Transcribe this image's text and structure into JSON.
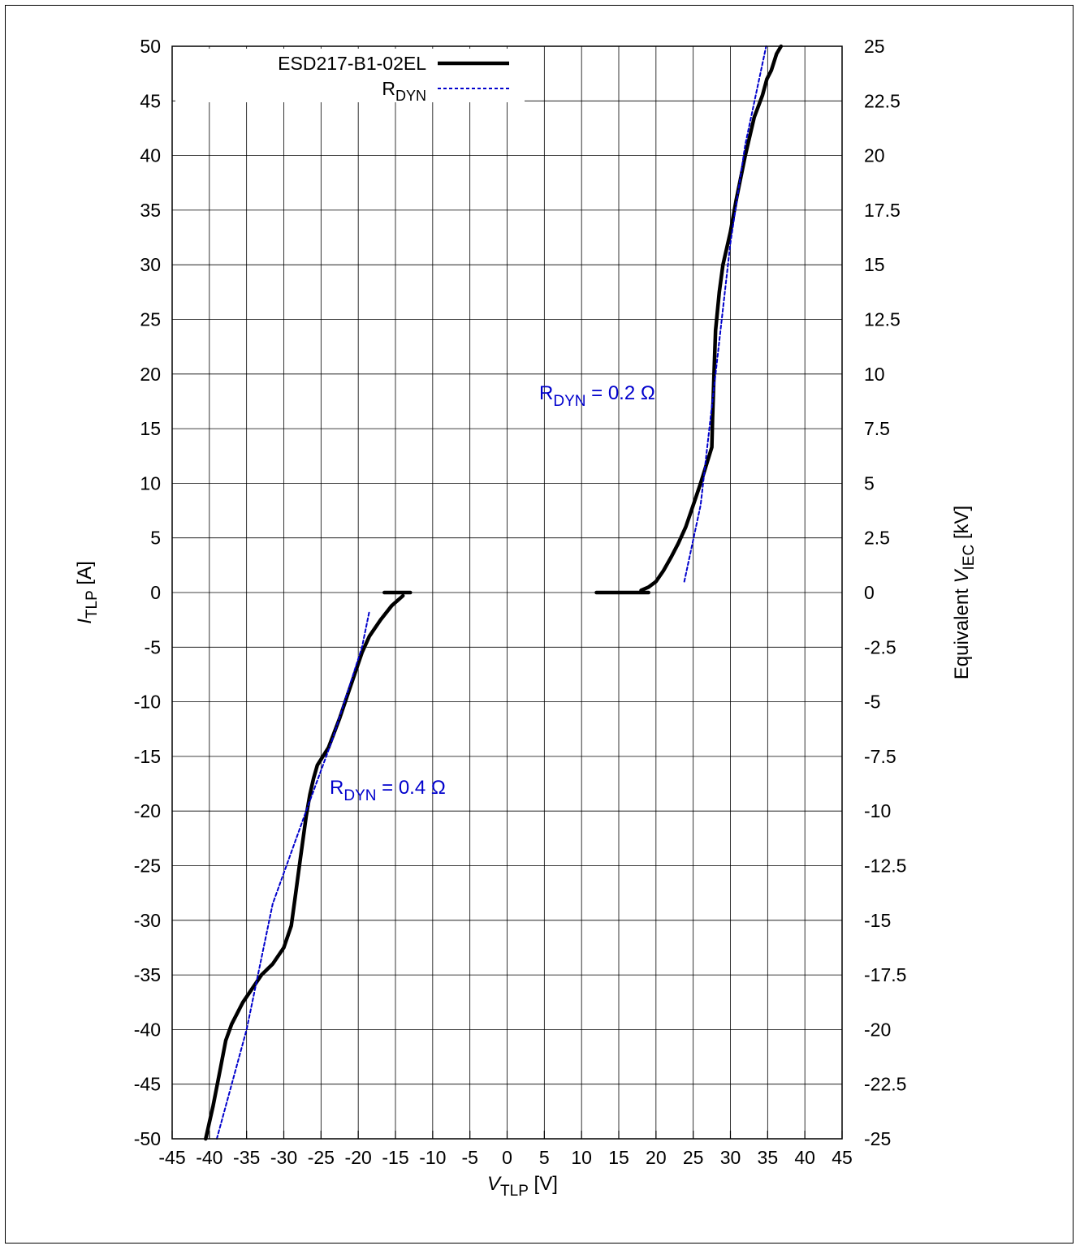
{
  "chart_data": {
    "type": "line",
    "x_axis": {
      "label_main": "V",
      "label_sub": "TLP",
      "label_unit": " [V]",
      "range": [
        -45,
        45
      ],
      "ticks": [
        -45,
        -40,
        -35,
        -30,
        -25,
        -20,
        -15,
        -10,
        -5,
        0,
        5,
        10,
        15,
        20,
        25,
        30,
        35,
        40,
        45
      ]
    },
    "y_axis": {
      "label_main": "I",
      "label_sub": "TLP",
      "label_unit": " [A]",
      "range": [
        -50,
        50
      ],
      "ticks": [
        -50,
        -45,
        -40,
        -35,
        -30,
        -25,
        -20,
        -15,
        -10,
        -5,
        0,
        5,
        10,
        15,
        20,
        25,
        30,
        35,
        40,
        45,
        50
      ]
    },
    "y2_axis": {
      "label_main": "Equivalent ",
      "label_italic": "V",
      "label_sub": "IEC",
      "label_unit": "  [kV]",
      "range": [
        -25,
        25
      ],
      "tick_labels": [
        "-25",
        "-22.5",
        "-20",
        "-17.5",
        "-15",
        "-12.5",
        "-10",
        "-7.5",
        "-5",
        "-2.5",
        "0",
        "2.5",
        "5",
        "7.5",
        "10",
        "12.5",
        "15",
        "17.5",
        "20",
        "22.5",
        "25"
      ]
    },
    "grid": true,
    "legend_position": "top-left",
    "series": [
      {
        "name": "ESD217-B1-02EL",
        "color": "#000000",
        "style": "solid",
        "segments": [
          [
            [
              12,
              0
            ],
            [
              16,
              0
            ],
            [
              19,
              0
            ]
          ],
          [
            [
              18,
              0.2
            ],
            [
              19,
              0.5
            ],
            [
              20,
              1
            ],
            [
              21,
              2
            ],
            [
              22,
              3.2
            ],
            [
              23,
              4.5
            ],
            [
              24,
              6
            ],
            [
              25,
              8
            ],
            [
              26,
              10
            ],
            [
              27,
              12.2
            ],
            [
              27.5,
              13.3
            ],
            [
              27.6,
              16
            ],
            [
              27.8,
              20
            ],
            [
              28,
              24
            ],
            [
              28.5,
              27.5
            ],
            [
              29,
              30
            ],
            [
              30,
              33
            ],
            [
              30.8,
              36
            ],
            [
              32,
              40
            ],
            [
              33.2,
              43.5
            ],
            [
              34.3,
              45.5
            ],
            [
              34.9,
              47
            ],
            [
              35.5,
              47.8
            ],
            [
              36.2,
              49.3
            ],
            [
              36.8,
              50
            ]
          ],
          [
            [
              -16.5,
              0
            ],
            [
              -15,
              0
            ],
            [
              -13,
              0
            ]
          ],
          [
            [
              -14,
              -0.3
            ],
            [
              -15.5,
              -1.2
            ],
            [
              -17,
              -2.5
            ],
            [
              -18.5,
              -4
            ],
            [
              -19.5,
              -5.5
            ],
            [
              -20.5,
              -7.5
            ],
            [
              -21.5,
              -9.5
            ],
            [
              -22.5,
              -11.5
            ],
            [
              -24,
              -14.2
            ],
            [
              -25.5,
              -15.8
            ],
            [
              -26,
              -17
            ],
            [
              -26.5,
              -18.5
            ],
            [
              -27,
              -20.5
            ],
            [
              -27.5,
              -23
            ],
            [
              -28,
              -25.5
            ],
            [
              -28.5,
              -28
            ],
            [
              -29,
              -30.5
            ],
            [
              -30,
              -32.5
            ],
            [
              -31.5,
              -34
            ],
            [
              -33,
              -35
            ],
            [
              -35.5,
              -37.5
            ],
            [
              -37,
              -39.5
            ],
            [
              -37.8,
              -41
            ],
            [
              -38.5,
              -43.5
            ],
            [
              -39.5,
              -47
            ],
            [
              -40.5,
              -50
            ]
          ]
        ]
      },
      {
        "name": "R",
        "name_sub": "DYN",
        "color": "#0000cc",
        "style": "dashed",
        "segments": [
          [
            [
              23.8,
              1
            ],
            [
              26,
              8
            ],
            [
              28,
              20
            ],
            [
              30,
              32
            ],
            [
              32,
              41
            ],
            [
              34.8,
              50
            ]
          ],
          [
            [
              -39,
              -50
            ],
            [
              -35,
              -40
            ],
            [
              -31.5,
              -28.5
            ],
            [
              -27,
              -20
            ],
            [
              -23.5,
              -13.5
            ],
            [
              -19.5,
              -5
            ],
            [
              -18.5,
              -1.7
            ]
          ]
        ]
      }
    ],
    "annotations": [
      {
        "main": "R",
        "sub": "DYN",
        "tail": " = 0.2 Ω",
        "color": "#0000cc"
      },
      {
        "main": "R",
        "sub": "DYN",
        "tail": " = 0.4 Ω",
        "color": "#0000cc"
      }
    ]
  }
}
